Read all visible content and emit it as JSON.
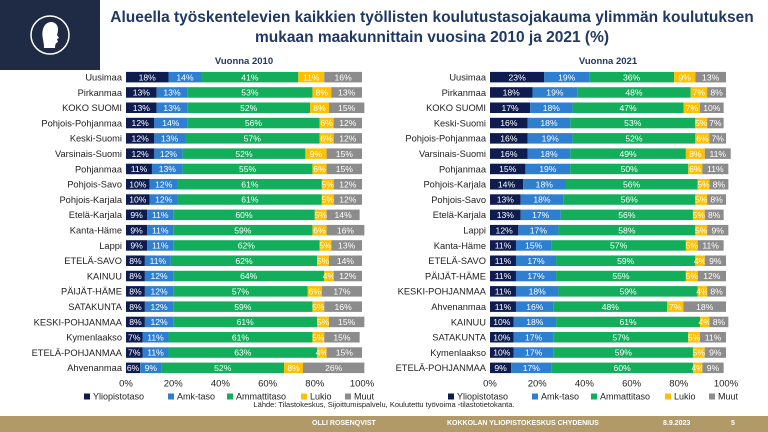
{
  "title": "Alueella työskentelevien kaikkien työllisten koulutustasojakauma ylimmän koulutuksen mukaan maakunnittain vuosina 2010 ja 2021 (%)",
  "source": "Lähde: Tilastokeskus, Sijoittumispalvelu, Koulutettu työvoima -tilastotietokanta.",
  "footer": {
    "author": "OLLI ROSENQVIST",
    "org": "KOKKOLAN YLIOPISTOKESKUS CHYDENIUS",
    "date": "8.9.2023",
    "page": "5"
  },
  "colors": {
    "Yliopistotaso": "#0e1c4f",
    "Amk-taso": "#2f7fd0",
    "Ammattitaso": "#13ae5b",
    "Lukio": "#ffc000",
    "Muut": "#8c8c8c"
  },
  "chart_data": [
    {
      "type": "bar",
      "stacked": true,
      "orientation": "horizontal",
      "title": "Vuonna 2010",
      "xlim": [
        0,
        100
      ],
      "x_ticks": [
        "0%",
        "20%",
        "40%",
        "60%",
        "80%",
        "100%"
      ],
      "legend": "bottom",
      "categories": [
        "Uusimaa",
        "Pirkanmaa",
        "KOKO SUOMI",
        "Pohjois-Pohjanmaa",
        "Keski-Suomi",
        "Varsinais-Suomi",
        "Pohjanmaa",
        "Pohjois-Savo",
        "Pohjois-Karjala",
        "Etelä-Karjala",
        "Kanta-Häme",
        "Lappi",
        "ETELÄ-SAVO",
        "KAINUU",
        "PÄIJÄT-HÄME",
        "SATAKUNTA",
        "KESKI-POHJANMAA",
        "Kymenlaakso",
        "ETELÄ-POHJANMAA",
        "Ahvenanmaa"
      ],
      "series": [
        {
          "name": "Yliopistotaso",
          "values": [
            18,
            13,
            13,
            12,
            12,
            12,
            11,
            10,
            10,
            9,
            9,
            9,
            8,
            8,
            8,
            8,
            8,
            7,
            7,
            6
          ]
        },
        {
          "name": "Amk-taso",
          "values": [
            14,
            13,
            13,
            14,
            13,
            12,
            13,
            12,
            12,
            11,
            11,
            11,
            11,
            12,
            12,
            12,
            12,
            11,
            11,
            9
          ]
        },
        {
          "name": "Ammattitaso",
          "values": [
            41,
            53,
            52,
            56,
            57,
            52,
            55,
            61,
            61,
            60,
            59,
            62,
            62,
            64,
            57,
            59,
            61,
            61,
            63,
            52
          ]
        },
        {
          "name": "Lukio",
          "values": [
            11,
            8,
            8,
            6,
            6,
            9,
            6,
            5,
            5,
            5,
            6,
            5,
            5,
            4,
            6,
            5,
            5,
            5,
            4,
            8
          ]
        },
        {
          "name": "Muut",
          "values": [
            16,
            13,
            15,
            12,
            12,
            15,
            15,
            12,
            12,
            14,
            16,
            13,
            14,
            12,
            17,
            16,
            15,
            15,
            15,
            26
          ]
        }
      ]
    },
    {
      "type": "bar",
      "stacked": true,
      "orientation": "horizontal",
      "title": "Vuonna 2021",
      "xlim": [
        0,
        100
      ],
      "x_ticks": [
        "0%",
        "20%",
        "40%",
        "60%",
        "80%",
        "100%"
      ],
      "legend": "bottom",
      "categories": [
        "Uusimaa",
        "Pirkanmaa",
        "KOKO SUOMI",
        "Keski-Suomi",
        "Pohjois-Pohjanmaa",
        "Varsinais-Suomi",
        "Pohjanmaa",
        "Pohjois-Karjala",
        "Pohjois-Savo",
        "Etelä-Karjala",
        "Lappi",
        "Kanta-Häme",
        "ETELÄ-SAVO",
        "PÄIJÄT-HÄME",
        "KESKI-POHJANMAA",
        "Ahvenanmaa",
        "KAINUU",
        "SATAKUNTA",
        "Kymenlaakso",
        "ETELÄ-POHJANMAA"
      ],
      "series": [
        {
          "name": "Yliopistotaso",
          "values": [
            23,
            18,
            17,
            16,
            16,
            16,
            15,
            14,
            13,
            13,
            12,
            11,
            11,
            11,
            11,
            11,
            10,
            10,
            10,
            9
          ]
        },
        {
          "name": "Amk-taso",
          "values": [
            19,
            19,
            18,
            18,
            19,
            18,
            19,
            18,
            18,
            17,
            17,
            15,
            17,
            17,
            18,
            16,
            18,
            17,
            17,
            17
          ]
        },
        {
          "name": "Ammattitaso",
          "values": [
            36,
            48,
            47,
            53,
            52,
            49,
            50,
            56,
            56,
            56,
            58,
            57,
            59,
            55,
            59,
            48,
            61,
            57,
            59,
            60
          ]
        },
        {
          "name": "Lukio",
          "values": [
            9,
            7,
            7,
            5,
            6,
            8,
            6,
            5,
            5,
            5,
            5,
            5,
            4,
            5,
            4,
            7,
            4,
            5,
            5,
            4
          ]
        },
        {
          "name": "Muut",
          "values": [
            13,
            8,
            10,
            7,
            7,
            11,
            11,
            8,
            8,
            8,
            9,
            11,
            9,
            12,
            8,
            18,
            8,
            11,
            9,
            9
          ]
        }
      ]
    }
  ]
}
